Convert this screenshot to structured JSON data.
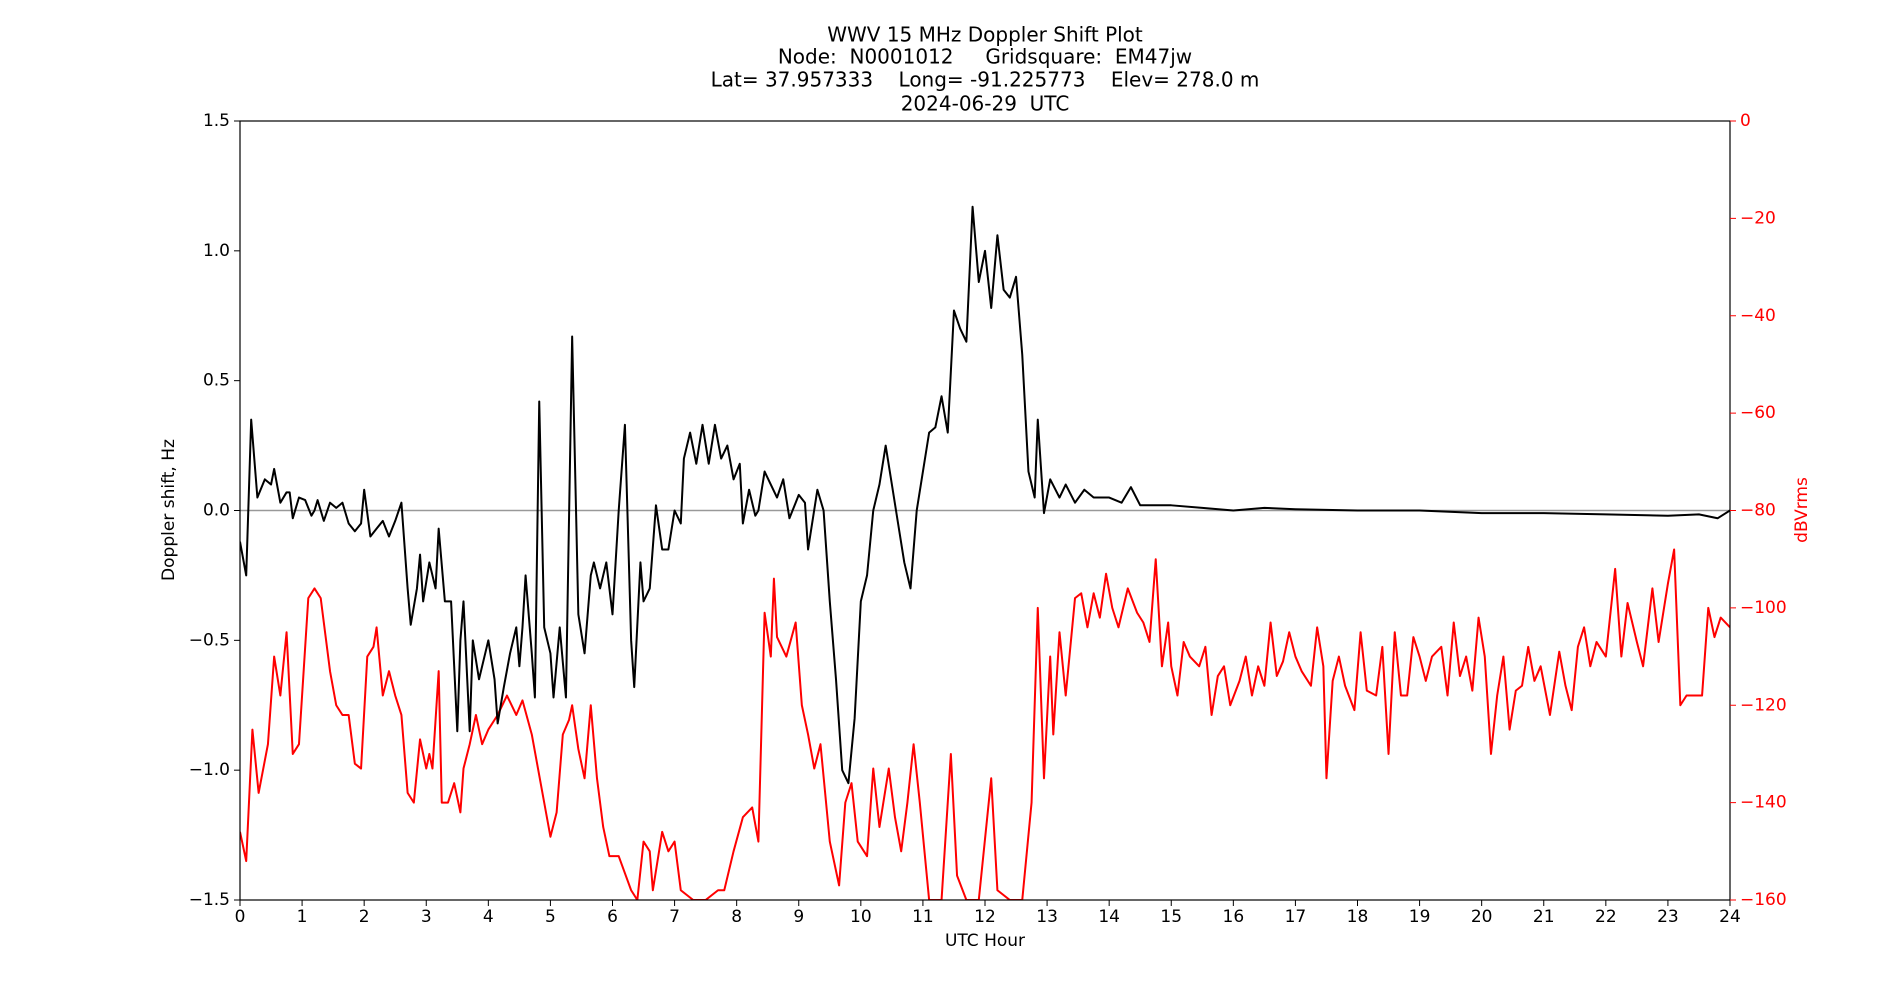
{
  "chart_data": {
    "type": "line",
    "title": [
      "WWV 15 MHz Doppler Shift Plot",
      "Node:  N0001012     Gridsquare:  EM47jw",
      "Lat= 37.957333    Long= -91.225773    Elev= 278.0 m",
      "2024-06-29  UTC"
    ],
    "xlabel": "UTC Hour",
    "ylabel": "Doppler shift, Hz",
    "y2label": "dBVrms",
    "xlim": [
      0,
      24
    ],
    "xticks": [
      0,
      1,
      2,
      3,
      4,
      5,
      6,
      7,
      8,
      9,
      10,
      11,
      12,
      13,
      14,
      15,
      16,
      17,
      18,
      19,
      20,
      21,
      22,
      23,
      24
    ],
    "ylim": [
      -1.5,
      1.5
    ],
    "yticks": [
      {
        "value": -1.5,
        "label": "−1.5"
      },
      {
        "value": -1.0,
        "label": "−1.0"
      },
      {
        "value": -0.5,
        "label": "−0.5"
      },
      {
        "value": 0,
        "label": "0.0"
      },
      0.5,
      {
        "value": 1.0,
        "label": "1.0"
      },
      1.5
    ],
    "y2lim": [
      -160,
      0
    ],
    "y2ticks": [
      {
        "value": -160,
        "label": "−160"
      },
      {
        "value": -140,
        "label": "−140"
      },
      {
        "value": -120,
        "label": "−120"
      },
      {
        "value": -100,
        "label": "−100"
      },
      {
        "value": -80,
        "label": "−80"
      },
      {
        "value": -60,
        "label": "−60"
      },
      {
        "value": -40,
        "label": "−40"
      },
      {
        "value": -20,
        "label": "−20"
      },
      0
    ],
    "zero_line": true,
    "series": [
      {
        "color": "#000000",
        "axis": "y",
        "x": [
          0,
          0.1,
          0.18,
          0.28,
          0.4,
          0.5,
          0.55,
          0.65,
          0.75,
          0.8,
          0.85,
          0.95,
          1.05,
          1.15,
          1.2,
          1.25,
          1.35,
          1.45,
          1.55,
          1.65,
          1.75,
          1.85,
          1.95,
          2.0,
          2.1,
          2.2,
          2.3,
          2.4,
          2.5,
          2.6,
          2.7,
          2.75,
          2.85,
          2.9,
          2.95,
          3.05,
          3.15,
          3.2,
          3.3,
          3.4,
          3.45,
          3.5,
          3.55,
          3.6,
          3.7,
          3.75,
          3.85,
          3.95,
          4.0,
          4.1,
          4.15,
          4.25,
          4.35,
          4.45,
          4.5,
          4.55,
          4.6,
          4.7,
          4.75,
          4.82,
          4.9,
          5.0,
          5.05,
          5.15,
          5.25,
          5.35,
          5.45,
          5.55,
          5.65,
          5.7,
          5.8,
          5.9,
          6.0,
          6.1,
          6.2,
          6.3,
          6.35,
          6.45,
          6.5,
          6.6,
          6.7,
          6.8,
          6.9,
          7.0,
          7.1,
          7.15,
          7.25,
          7.35,
          7.45,
          7.55,
          7.65,
          7.75,
          7.85,
          7.95,
          8.05,
          8.1,
          8.2,
          8.3,
          8.35,
          8.45,
          8.55,
          8.65,
          8.75,
          8.85,
          8.95,
          9.0,
          9.1,
          9.15,
          9.3,
          9.4,
          9.5,
          9.6,
          9.7,
          9.8,
          9.9,
          10.0,
          10.1,
          10.2,
          10.3,
          10.4,
          10.5,
          10.6,
          10.7,
          10.8,
          10.9,
          11.1,
          11.2,
          11.3,
          11.4,
          11.5,
          11.6,
          11.7,
          11.8,
          11.9,
          12.0,
          12.1,
          12.2,
          12.3,
          12.4,
          12.5,
          12.6,
          12.7,
          12.8,
          12.85,
          12.95,
          13.05,
          13.2,
          13.3,
          13.45,
          13.6,
          13.75,
          14.0,
          14.2,
          14.35,
          14.5,
          15.0,
          15.5,
          16,
          16.5,
          17,
          18,
          19,
          20,
          21,
          22,
          23,
          23.5,
          23.8,
          24
        ],
        "values": [
          -0.12,
          -0.25,
          0.35,
          0.05,
          0.12,
          0.1,
          0.16,
          0.03,
          0.07,
          0.07,
          -0.03,
          0.05,
          0.04,
          -0.02,
          0.0,
          0.04,
          -0.04,
          0.03,
          0.01,
          0.03,
          -0.05,
          -0.08,
          -0.05,
          0.08,
          -0.1,
          -0.07,
          -0.04,
          -0.1,
          -0.04,
          0.03,
          -0.3,
          -0.44,
          -0.3,
          -0.17,
          -0.35,
          -0.2,
          -0.3,
          -0.07,
          -0.35,
          -0.35,
          -0.6,
          -0.85,
          -0.5,
          -0.35,
          -0.85,
          -0.5,
          -0.65,
          -0.55,
          -0.5,
          -0.65,
          -0.82,
          -0.68,
          -0.55,
          -0.45,
          -0.6,
          -0.45,
          -0.25,
          -0.55,
          -0.72,
          0.42,
          -0.45,
          -0.55,
          -0.72,
          -0.45,
          -0.72,
          0.67,
          -0.4,
          -0.55,
          -0.25,
          -0.2,
          -0.3,
          -0.2,
          -0.4,
          0.0,
          0.33,
          -0.5,
          -0.68,
          -0.2,
          -0.35,
          -0.3,
          0.02,
          -0.15,
          -0.15,
          0.0,
          -0.05,
          0.2,
          0.3,
          0.18,
          0.33,
          0.18,
          0.33,
          0.2,
          0.25,
          0.12,
          0.18,
          -0.05,
          0.08,
          -0.02,
          0.0,
          0.15,
          0.1,
          0.05,
          0.12,
          -0.03,
          0.03,
          0.06,
          0.03,
          -0.15,
          0.08,
          0.0,
          -0.35,
          -0.65,
          -1.0,
          -1.05,
          -0.8,
          -0.35,
          -0.25,
          0.0,
          0.1,
          0.25,
          0.1,
          -0.05,
          -0.2,
          -0.3,
          0.0,
          0.3,
          0.32,
          0.44,
          0.3,
          0.77,
          0.7,
          0.65,
          1.17,
          0.88,
          1.0,
          0.78,
          1.06,
          0.85,
          0.82,
          0.9,
          0.6,
          0.15,
          0.05,
          0.35,
          -0.01,
          0.12,
          0.05,
          0.1,
          0.03,
          0.08,
          0.05,
          0.05,
          0.03,
          0.09,
          0.02,
          0.02,
          0.01,
          0.0,
          0.01,
          0.005,
          0.0,
          0.0,
          -0.01,
          -0.01,
          -0.015,
          -0.02,
          -0.015,
          -0.03,
          0.0
        ]
      },
      {
        "color": "#ff0000",
        "axis": "y2",
        "x": [
          0,
          0.1,
          0.2,
          0.3,
          0.45,
          0.55,
          0.65,
          0.75,
          0.85,
          0.95,
          1.1,
          1.2,
          1.3,
          1.45,
          1.55,
          1.65,
          1.75,
          1.85,
          1.95,
          2.05,
          2.15,
          2.2,
          2.3,
          2.4,
          2.5,
          2.6,
          2.7,
          2.8,
          2.9,
          3.0,
          3.05,
          3.1,
          3.2,
          3.25,
          3.35,
          3.45,
          3.55,
          3.6,
          3.7,
          3.8,
          3.9,
          4.0,
          4.15,
          4.3,
          4.45,
          4.55,
          4.7,
          4.8,
          4.9,
          5.0,
          5.1,
          5.2,
          5.3,
          5.35,
          5.45,
          5.55,
          5.65,
          5.75,
          5.85,
          5.95,
          6.1,
          6.3,
          6.4,
          6.5,
          6.6,
          6.65,
          6.8,
          6.9,
          7.0,
          7.1,
          7.3,
          7.5,
          7.7,
          7.8,
          7.95,
          8.1,
          8.25,
          8.35,
          8.45,
          8.55,
          8.6,
          8.65,
          8.8,
          8.95,
          9.05,
          9.15,
          9.25,
          9.35,
          9.5,
          9.65,
          9.75,
          9.85,
          9.95,
          10.1,
          10.2,
          10.3,
          10.45,
          10.55,
          10.65,
          10.75,
          10.85,
          10.95,
          11.1,
          11.3,
          11.45,
          11.55,
          11.7,
          11.9,
          12.1,
          12.2,
          12.4,
          12.6,
          12.75,
          12.85,
          12.95,
          13.05,
          13.1,
          13.2,
          13.3,
          13.45,
          13.55,
          13.65,
          13.75,
          13.85,
          13.95,
          14.05,
          14.15,
          14.3,
          14.45,
          14.55,
          14.65,
          14.75,
          14.85,
          14.95,
          15.0,
          15.1,
          15.2,
          15.3,
          15.45,
          15.55,
          15.65,
          15.75,
          15.85,
          15.95,
          16.1,
          16.2,
          16.3,
          16.4,
          16.5,
          16.6,
          16.7,
          16.8,
          16.9,
          17.0,
          17.1,
          17.25,
          17.35,
          17.45,
          17.5,
          17.6,
          17.7,
          17.8,
          17.95,
          18.05,
          18.15,
          18.3,
          18.4,
          18.5,
          18.6,
          18.7,
          18.8,
          18.9,
          19.0,
          19.1,
          19.2,
          19.35,
          19.45,
          19.55,
          19.65,
          19.75,
          19.85,
          19.95,
          20.05,
          20.15,
          20.25,
          20.35,
          20.45,
          20.55,
          20.65,
          20.75,
          20.85,
          20.95,
          21.1,
          21.25,
          21.35,
          21.45,
          21.55,
          21.65,
          21.75,
          21.85,
          22.0,
          22.15,
          22.25,
          22.35,
          22.5,
          22.6,
          22.75,
          22.85,
          22.95,
          23.0,
          23.1,
          23.2,
          23.3,
          23.55,
          23.65,
          23.75,
          23.85,
          24.0
        ],
        "values": [
          -146,
          -152,
          -125,
          -138,
          -128,
          -110,
          -118,
          -105,
          -130,
          -128,
          -98,
          -96,
          -98,
          -113,
          -120,
          -122,
          -122,
          -132,
          -133,
          -110,
          -108,
          -104,
          -118,
          -113,
          -118,
          -122,
          -138,
          -140,
          -127,
          -133,
          -130,
          -133,
          -113,
          -140,
          -140,
          -136,
          -142,
          -133,
          -128,
          -122,
          -128,
          -125,
          -122,
          -118,
          -122,
          -119,
          -126,
          -133,
          -140,
          -147,
          -142,
          -126,
          -123,
          -120,
          -129,
          -135,
          -120,
          -135,
          -145,
          -151,
          -151,
          -158,
          -160,
          -148,
          -150,
          -158,
          -146,
          -150,
          -148,
          -158,
          -160,
          -160,
          -158,
          -158,
          -150,
          -143,
          -141,
          -148,
          -101,
          -110,
          -94,
          -106,
          -110,
          -103,
          -120,
          -126,
          -133,
          -128,
          -148,
          -157,
          -140,
          -136,
          -148,
          -151,
          -133,
          -145,
          -133,
          -143,
          -150,
          -140,
          -128,
          -140,
          -160,
          -160,
          -130,
          -155,
          -160,
          -160,
          -135,
          -158,
          -160,
          -160,
          -140,
          -100,
          -135,
          -110,
          -126,
          -105,
          -118,
          -98,
          -97,
          -104,
          -97,
          -102,
          -93,
          -100,
          -104,
          -96,
          -101,
          -103,
          -107,
          -90,
          -112,
          -103,
          -112,
          -118,
          -107,
          -110,
          -112,
          -108,
          -122,
          -114,
          -112,
          -120,
          -115,
          -110,
          -118,
          -112,
          -116,
          -103,
          -114,
          -111,
          -105,
          -110,
          -113,
          -116,
          -104,
          -112,
          -135,
          -115,
          -110,
          -116,
          -121,
          -105,
          -117,
          -118,
          -108,
          -130,
          -105,
          -118,
          -118,
          -106,
          -110,
          -115,
          -110,
          -108,
          -118,
          -103,
          -114,
          -110,
          -117,
          -102,
          -110,
          -130,
          -118,
          -110,
          -125,
          -117,
          -116,
          -108,
          -115,
          -112,
          -122,
          -109,
          -116,
          -121,
          -108,
          -104,
          -112,
          -107,
          -110,
          -92,
          -110,
          -99,
          -107,
          -112,
          -96,
          -107,
          -99,
          -95,
          -88,
          -120,
          -118,
          -118,
          -100,
          -106,
          -102,
          -104
        ]
      }
    ]
  }
}
